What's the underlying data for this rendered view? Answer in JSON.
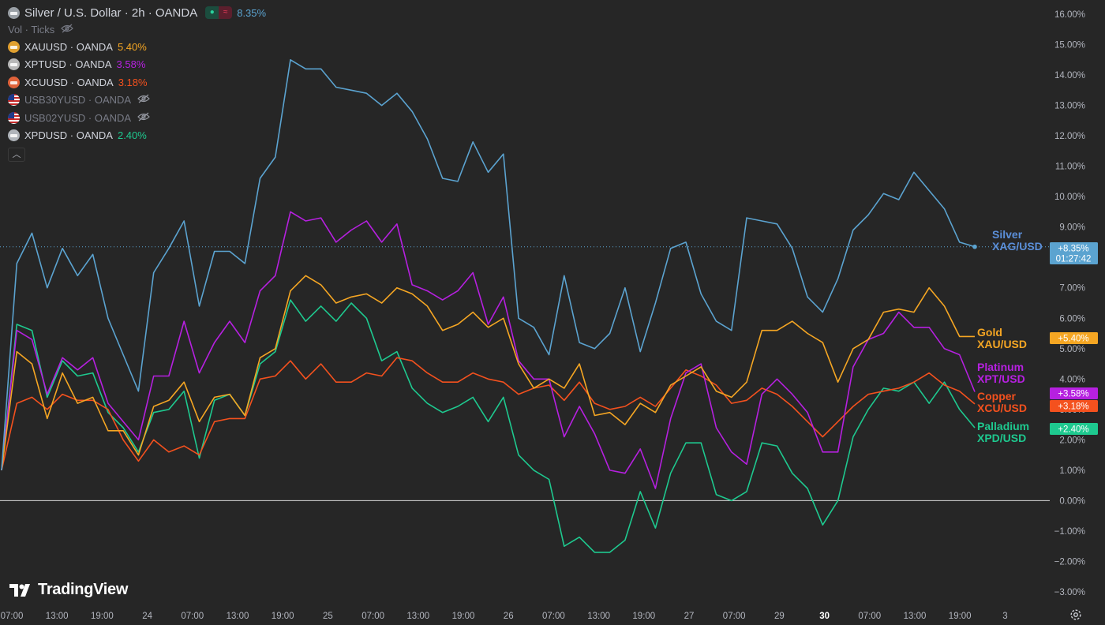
{
  "title": {
    "symbol": "Silver / U.S. Dollar · 2h · OANDA",
    "change": "8.35%",
    "vol_label": "Vol · Ticks"
  },
  "legend": [
    {
      "symbol": "XAUUSD · OANDA",
      "value": "5.40%",
      "color": "#f5a623",
      "icon": "gold-icon",
      "hidden": false
    },
    {
      "symbol": "XPTUSD · OANDA",
      "value": "3.58%",
      "color": "#b620e0",
      "icon": "platinum-icon",
      "hidden": false
    },
    {
      "symbol": "XCUUSD · OANDA",
      "value": "3.18%",
      "color": "#f4511e",
      "icon": "copper-icon",
      "hidden": false
    },
    {
      "symbol": "USB30YUSD · OANDA",
      "value": "",
      "color": "#787b86",
      "icon": "us-flag-icon",
      "hidden": true
    },
    {
      "symbol": "USB02YUSD · OANDA",
      "value": "",
      "color": "#787b86",
      "icon": "us-flag-icon",
      "hidden": true
    },
    {
      "symbol": "XPDUSD · OANDA",
      "value": "2.40%",
      "color": "#1ec98f",
      "icon": "palladium-icon",
      "hidden": false
    }
  ],
  "brand": "TradingView",
  "chart_data": {
    "type": "line",
    "y_unit": "%",
    "ylim": [
      -3,
      16
    ],
    "y_ticks": [
      "16.00%",
      "15.00%",
      "14.00%",
      "13.00%",
      "12.00%",
      "11.00%",
      "10.00%",
      "9.00%",
      "8.00%",
      "7.00%",
      "6.00%",
      "5.00%",
      "4.00%",
      "3.00%",
      "2.00%",
      "1.00%",
      "0.00%",
      "−1.00%",
      "−2.00%",
      "−3.00%"
    ],
    "x_ticks": [
      "07:00",
      "13:00",
      "19:00",
      "24",
      "07:00",
      "13:00",
      "19:00",
      "25",
      "07:00",
      "13:00",
      "19:00",
      "26",
      "07:00",
      "13:00",
      "19:00",
      "27",
      "07:00",
      "29",
      "30",
      "07:00",
      "13:00",
      "19:00",
      "3"
    ],
    "x_bold_ticks": [
      "30"
    ],
    "zero_line": 0,
    "series": [
      {
        "name": "Silver",
        "sub": "XAG/USD",
        "color": "#5ba3d0",
        "label_color": "#5b8fd9",
        "badge": "+8.35%",
        "badge_time": "01:27:42",
        "values": [
          1.0,
          7.8,
          8.8,
          7.0,
          8.3,
          7.4,
          8.1,
          6.0,
          4.8,
          3.6,
          7.5,
          8.3,
          9.2,
          6.4,
          8.2,
          8.2,
          7.8,
          10.6,
          11.3,
          14.5,
          14.2,
          14.2,
          13.6,
          13.5,
          13.4,
          13.0,
          13.4,
          12.8,
          11.9,
          10.6,
          10.5,
          11.8,
          10.8,
          11.4,
          6.0,
          5.7,
          4.8,
          7.4,
          5.2,
          5.0,
          5.5,
          7.0,
          4.9,
          6.5,
          8.3,
          8.5,
          6.8,
          5.9,
          5.6,
          9.3,
          9.2,
          9.1,
          8.3,
          6.7,
          6.2,
          7.3,
          8.9,
          9.4,
          10.1,
          9.9,
          10.8,
          10.2,
          9.6,
          8.5,
          8.35
        ]
      },
      {
        "name": "Gold",
        "sub": "XAU/USD",
        "color": "#f5a623",
        "label_color": "#f5a623",
        "badge": "+5.40%",
        "values": [
          1.0,
          4.9,
          4.5,
          2.7,
          4.2,
          3.2,
          3.4,
          2.3,
          2.3,
          1.5,
          3.1,
          3.3,
          3.9,
          2.6,
          3.4,
          3.5,
          2.8,
          4.7,
          5.0,
          6.9,
          7.4,
          7.1,
          6.5,
          6.7,
          6.8,
          6.5,
          7.0,
          6.8,
          6.4,
          5.6,
          5.8,
          6.2,
          5.7,
          6.0,
          4.5,
          3.7,
          4.0,
          3.7,
          4.5,
          2.8,
          2.9,
          2.5,
          3.2,
          2.9,
          3.8,
          4.1,
          4.4,
          3.6,
          3.4,
          3.9,
          5.6,
          5.6,
          5.9,
          5.5,
          5.2,
          3.9,
          5.0,
          5.3,
          6.2,
          6.3,
          6.2,
          7.0,
          6.4,
          5.4,
          5.4
        ]
      },
      {
        "name": "Platinum",
        "sub": "XPT/USD",
        "color": "#b620e0",
        "label_color": "#b620e0",
        "badge": "+3.58%",
        "values": [
          1.0,
          5.6,
          5.3,
          3.5,
          4.7,
          4.3,
          4.7,
          3.2,
          2.6,
          2.0,
          4.1,
          4.1,
          5.9,
          4.2,
          5.2,
          5.9,
          5.2,
          6.9,
          7.4,
          9.5,
          9.2,
          9.3,
          8.5,
          8.9,
          9.2,
          8.5,
          9.1,
          7.1,
          6.9,
          6.6,
          6.9,
          7.5,
          5.8,
          6.7,
          4.6,
          4.0,
          4.0,
          2.1,
          3.1,
          2.2,
          1.0,
          0.9,
          1.7,
          0.4,
          2.7,
          4.2,
          4.5,
          2.4,
          1.6,
          1.2,
          3.5,
          4.0,
          3.5,
          2.9,
          1.6,
          1.6,
          4.4,
          5.3,
          5.5,
          6.2,
          5.7,
          5.7,
          5.0,
          4.8,
          3.58
        ]
      },
      {
        "name": "Copper",
        "sub": "XCU/USD",
        "color": "#f4511e",
        "label_color": "#f4511e",
        "badge": "+3.18%",
        "values": [
          1.0,
          3.2,
          3.4,
          3.0,
          3.5,
          3.3,
          3.3,
          3.0,
          2.0,
          1.3,
          2.0,
          1.6,
          1.8,
          1.5,
          2.6,
          2.7,
          2.7,
          4.0,
          4.1,
          4.6,
          4.0,
          4.5,
          3.9,
          3.9,
          4.2,
          4.1,
          4.7,
          4.6,
          4.2,
          3.9,
          3.9,
          4.2,
          4.0,
          3.9,
          3.5,
          3.7,
          3.8,
          3.3,
          3.9,
          3.2,
          3.0,
          3.1,
          3.4,
          3.1,
          3.7,
          4.3,
          4.1,
          3.8,
          3.2,
          3.3,
          3.7,
          3.5,
          3.1,
          2.6,
          2.1,
          2.6,
          3.1,
          3.5,
          3.6,
          3.7,
          3.9,
          4.2,
          3.8,
          3.6,
          3.18
        ]
      },
      {
        "name": "Palladium",
        "sub": "XPD/USD",
        "color": "#1ec98f",
        "label_color": "#1ec98f",
        "badge": "+2.40%",
        "values": [
          1.0,
          5.8,
          5.6,
          3.4,
          4.6,
          4.1,
          4.2,
          2.9,
          2.4,
          1.6,
          2.9,
          3.0,
          3.6,
          1.4,
          3.3,
          3.5,
          2.8,
          4.5,
          4.9,
          6.6,
          5.9,
          6.4,
          5.9,
          6.5,
          6.0,
          4.6,
          4.9,
          3.7,
          3.2,
          2.9,
          3.1,
          3.4,
          2.6,
          3.4,
          1.5,
          1.0,
          0.7,
          -1.5,
          -1.2,
          -1.7,
          -1.7,
          -1.3,
          0.3,
          -0.9,
          0.9,
          1.9,
          1.9,
          0.2,
          0.0,
          0.3,
          1.9,
          1.8,
          0.9,
          0.4,
          -0.8,
          0.0,
          2.1,
          3.0,
          3.7,
          3.6,
          3.9,
          3.2,
          3.9,
          3.0,
          2.4
        ]
      }
    ]
  }
}
